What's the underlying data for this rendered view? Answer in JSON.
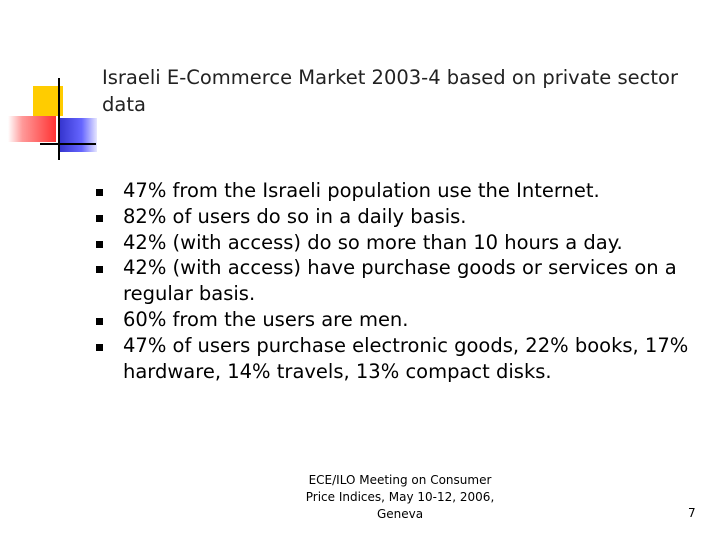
{
  "slide": {
    "title": "Israeli E-Commerce Market 2003-4 based on private sector data",
    "bullets": [
      "47% from the Israeli population use the Internet.",
      "82% of users do so in a daily basis.",
      "42% (with access) do so more than 10 hours a day.",
      "42% (with access) have purchase goods or services on a regular basis.",
      "60% from the users are men.",
      "47% of users purchase electronic goods, 22% books, 17% hardware, 14% travels, 13% compact disks."
    ],
    "footer": {
      "lines": [
        "ECE/ILO Meeting on Consumer",
        "Price Indices, May 10-12, 2006,",
        "Geneva"
      ],
      "page_number": "7"
    }
  }
}
